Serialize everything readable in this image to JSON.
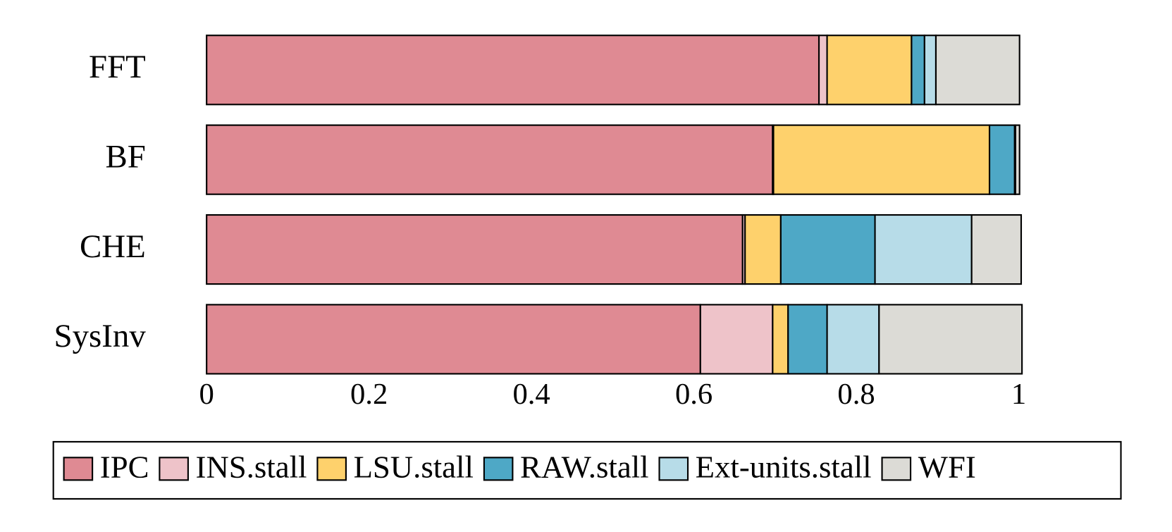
{
  "chart_data": {
    "type": "stacked_barh",
    "categories": [
      "FFT",
      "BF",
      "CHE",
      "SysInv"
    ],
    "series": [
      {
        "name": "IPC",
        "color": "#df8a93",
        "values": [
          0.754,
          0.697,
          0.66,
          0.608
        ]
      },
      {
        "name": "INS.stall",
        "color": "#eec3c9",
        "values": [
          0.01,
          0.001,
          0.003,
          0.089
        ]
      },
      {
        "name": "LSU.stall",
        "color": "#fed16c",
        "values": [
          0.104,
          0.266,
          0.044,
          0.019
        ]
      },
      {
        "name": "RAW.stall",
        "color": "#4ea8c6",
        "values": [
          0.016,
          0.031,
          0.116,
          0.048
        ]
      },
      {
        "name": "Ext-units.stall",
        "color": "#b7dce8",
        "values": [
          0.014,
          0.001,
          0.119,
          0.064
        ]
      },
      {
        "name": "WFI",
        "color": "#dcdbd6",
        "values": [
          0.103,
          0.005,
          0.061,
          0.176
        ]
      }
    ],
    "xlim": [
      0,
      1
    ],
    "xticks": [
      0,
      0.2,
      0.4,
      0.6,
      0.8,
      1
    ],
    "legend": "bottom"
  }
}
